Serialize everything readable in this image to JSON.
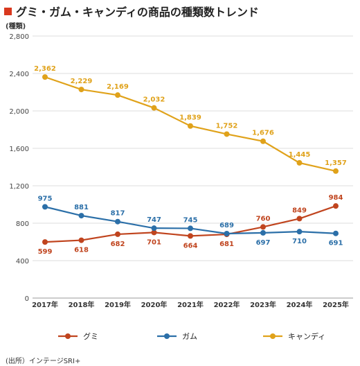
{
  "header": {
    "title": "グミ・ガム・キャンディの商品の種類数トレンド",
    "unit": "(種類)"
  },
  "source": "(出所）インテージSRI+",
  "colors": {
    "gumi": "#c0441e",
    "gum": "#2b6fa8",
    "candy": "#e0a21a",
    "title_mark": "#d9381e",
    "grid": "#dcdcdc"
  },
  "chart_data": {
    "type": "line",
    "categories": [
      "2017年",
      "2018年",
      "2019年",
      "2020年",
      "2021年",
      "2022年",
      "2023年",
      "2024年",
      "2025年"
    ],
    "ylim": [
      0,
      2800
    ],
    "yticks": [
      0,
      400,
      800,
      1200,
      1600,
      2000,
      2400,
      2800
    ],
    "ytick_labels": [
      "0",
      "400",
      "800",
      "1,200",
      "1,600",
      "2,000",
      "2,400",
      "2,800"
    ],
    "ylabel": "(種類)",
    "grid": true,
    "legend": "bottom",
    "series": [
      {
        "name": "グミ",
        "color": "#c0441e",
        "values": [
          599,
          618,
          682,
          701,
          664,
          681,
          760,
          849,
          984
        ],
        "labels": [
          "599",
          "618",
          "682",
          "701",
          "664",
          "681",
          "760",
          "849",
          "984"
        ],
        "label_pos": [
          "below",
          "below",
          "below",
          "below",
          "below",
          "below",
          "above",
          "above",
          "above"
        ]
      },
      {
        "name": "ガム",
        "color": "#2b6fa8",
        "values": [
          975,
          881,
          817,
          747,
          745,
          689,
          697,
          710,
          691
        ],
        "labels": [
          "975",
          "881",
          "817",
          "747",
          "745",
          "689",
          "697",
          "710",
          "691"
        ],
        "label_pos": [
          "above",
          "above",
          "above",
          "above",
          "above",
          "above",
          "below",
          "below",
          "below"
        ]
      },
      {
        "name": "キャンディ",
        "color": "#e0a21a",
        "values": [
          2362,
          2229,
          2169,
          2032,
          1839,
          1752,
          1676,
          1445,
          1357
        ],
        "labels": [
          "2,362",
          "2,229",
          "2,169",
          "2,032",
          "1,839",
          "1,752",
          "1,676",
          "1,445",
          "1,357"
        ],
        "label_pos": [
          "above",
          "above",
          "above",
          "above",
          "above",
          "above",
          "above",
          "above",
          "above"
        ]
      }
    ]
  }
}
